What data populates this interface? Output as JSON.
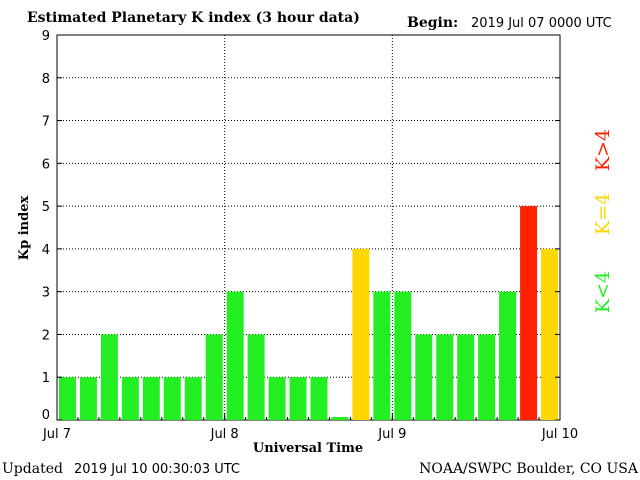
{
  "title": "Estimated Planetary K index (3 hour data)",
  "begin": {
    "label": "Begin:",
    "value": "2019 Jul 07 0000 UTC"
  },
  "footer": {
    "updated_label": "Updated",
    "updated_value": "2019 Jul 10 00:30:03 UTC",
    "source": "NOAA/SWPC Boulder, CO USA"
  },
  "legend": {
    "low": "K<4",
    "mid": "K=4",
    "high": "K>4"
  },
  "colors": {
    "low": "#22ee22",
    "mid": "#ffd700",
    "high": "#ff2200",
    "grid": "#000000",
    "frame": "#000000"
  },
  "chart_data": {
    "type": "bar",
    "xlabel": "Universal Time",
    "ylabel": "Kp index",
    "ylim": [
      0,
      9
    ],
    "yticks": [
      0,
      1,
      2,
      3,
      4,
      5,
      6,
      7,
      8,
      9
    ],
    "x_tick_labels": [
      "Jul 7",
      "Jul 8",
      "Jul 9",
      "Jul 10"
    ],
    "bins_per_day": 8,
    "values": [
      1,
      1,
      2,
      1,
      1,
      1,
      1,
      2,
      3,
      2,
      1,
      1,
      1,
      0.07,
      4,
      3,
      3,
      2,
      2,
      2,
      2,
      3,
      5,
      4
    ],
    "grid": "dotted"
  }
}
